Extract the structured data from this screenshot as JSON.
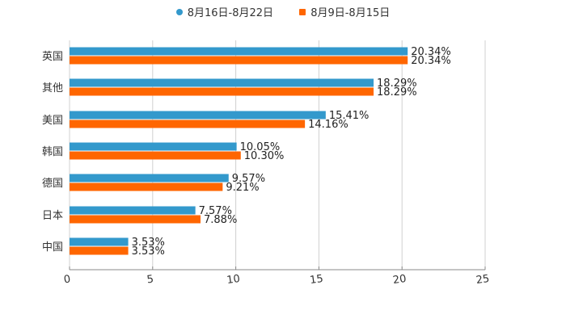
{
  "chart_data": {
    "type": "bar",
    "orientation": "horizontal",
    "title": "",
    "xlabel": "",
    "ylabel": "",
    "categories": [
      "英国",
      "其他",
      "美国",
      "韩国",
      "德国",
      "日本",
      "中国"
    ],
    "series": [
      {
        "name": "8月16日-8月22日",
        "color": "#3399cc",
        "marker": "circle",
        "values": [
          20.34,
          18.29,
          15.41,
          10.05,
          9.57,
          7.57,
          3.53
        ],
        "labels": [
          "20.34%",
          "18.29%",
          "15.41%",
          "10.05%",
          "9.57%",
          "7.57%",
          "3.53%"
        ]
      },
      {
        "name": "8月9日-8月15日",
        "color": "#ff6600",
        "marker": "square",
        "values": [
          20.34,
          18.29,
          14.16,
          10.3,
          9.21,
          7.88,
          3.53
        ],
        "labels": [
          "20.34%",
          "18.29%",
          "14.16%",
          "10.30%",
          "9.21%",
          "7.88%",
          "3.53%"
        ]
      }
    ],
    "xlim": [
      0,
      25
    ],
    "xticks": [
      "0",
      "5",
      "10",
      "15",
      "20",
      "25"
    ],
    "grid": true,
    "legend_position": "top"
  },
  "legend": {
    "items": [
      {
        "label": "8月16日-8月22日",
        "color": "#3399cc"
      },
      {
        "label": "8月9日-8月15日",
        "color": "#ff6600"
      }
    ]
  }
}
